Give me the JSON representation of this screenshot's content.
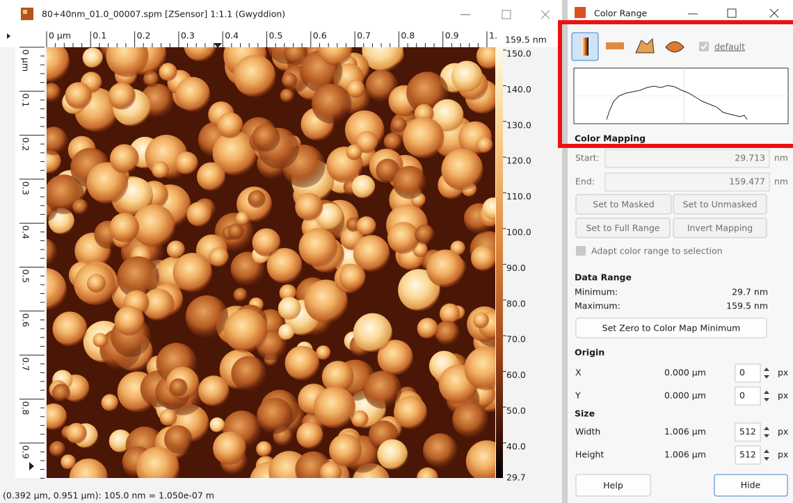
{
  "main_window": {
    "title": "80+40nm_01.0_00007.spm [ZSensor] 1:1.1 (Gwyddion)",
    "top_ruler": [
      "0 µm",
      "0.1",
      "0.2",
      "0.3",
      "0.4",
      "0.5",
      "0.6",
      "0.7",
      "0.8",
      "0.9",
      "1."
    ],
    "left_ruler": [
      "0 µm",
      "0.1",
      "0.2",
      "0.3",
      "0.4",
      "0.5",
      "0.6",
      "0.7",
      "0.8",
      "0.9"
    ],
    "color_scale_top": "159.5 nm",
    "color_scale": [
      "150.0",
      "140.0",
      "130.0",
      "120.0",
      "110.0",
      "100.0",
      "90.0",
      "80.0",
      "70.0",
      "60.0",
      "50.0",
      "40.0"
    ],
    "color_scale_bottom": "29.7",
    "status": "(0.392 µm, 0.951 µm): 105.0 nm = 1.050e-07 m"
  },
  "color_range": {
    "title": "Color Range",
    "default": "default",
    "color_mapping": {
      "heading": "Color Mapping",
      "start_label": "Start:",
      "start_value": "29.713",
      "start_unit": "nm",
      "end_label": "End:",
      "end_value": "159.477",
      "end_unit": "nm"
    },
    "buttons": [
      "Set to Masked",
      "Set to Unmasked",
      "Set to Full Range",
      "Invert Mapping"
    ],
    "adapt": "Adapt color range to selection",
    "data_range": {
      "heading": "Data Range",
      "minimum_label": "Minimum:",
      "minimum": "29.7 nm",
      "maximum_label": "Maximum:",
      "maximum": "159.5 nm",
      "zero_button": "Set Zero to Color Map Minimum"
    },
    "origin": {
      "heading": "Origin",
      "rows": [
        {
          "label": "X",
          "value": "0.000 µm",
          "pixels": "0",
          "unit": "px"
        },
        {
          "label": "Y",
          "value": "0.000 µm",
          "pixels": "0",
          "unit": "px"
        }
      ]
    },
    "size": {
      "heading": "Size",
      "rows": [
        {
          "label": "Width",
          "value": "1.006 µm",
          "pixels": "512",
          "unit": "px"
        },
        {
          "label": "Height",
          "value": "1.006 µm",
          "pixels": "512",
          "unit": "px"
        }
      ]
    },
    "help": "Help",
    "hide": "Hide"
  }
}
